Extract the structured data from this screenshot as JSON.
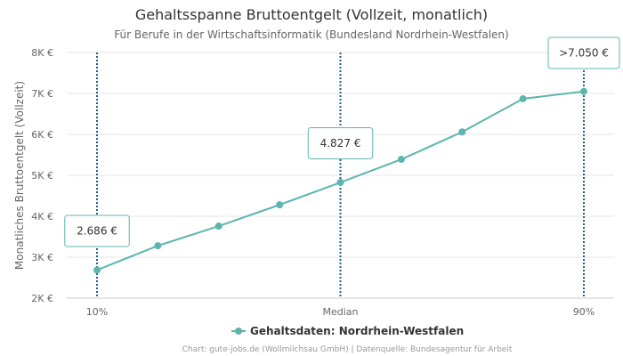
{
  "chart_data": {
    "type": "line",
    "title": "Gehaltsspanne Bruttoentgelt (Vollzeit, monatlich)",
    "subtitle": "Für Berufe in der Wirtschaftsinformatik (Bundesland Nordrhein-Westfalen)",
    "ylabel": "Monatliches Bruttoentgelt (Vollzeit)",
    "xlabel": "",
    "ylim": [
      2000,
      8000
    ],
    "y_ticks": [
      {
        "value": 2000,
        "label": "2K €"
      },
      {
        "value": 3000,
        "label": "3K €"
      },
      {
        "value": 4000,
        "label": "4K €"
      },
      {
        "value": 5000,
        "label": "5K €"
      },
      {
        "value": 6000,
        "label": "6K €"
      },
      {
        "value": 7000,
        "label": "7K €"
      },
      {
        "value": 8000,
        "label": "8K €"
      }
    ],
    "x_ticks": [
      {
        "x": 10,
        "label": "10%"
      },
      {
        "x": 50,
        "label": "Median"
      },
      {
        "x": 90,
        "label": "90%"
      }
    ],
    "grid": true,
    "series": [
      {
        "name": "Gehaltsdaten: Nordrhein-Westfalen",
        "color": "#5db5b0",
        "x": [
          10,
          20,
          30,
          40,
          50,
          60,
          70,
          80,
          90
        ],
        "values": [
          2686,
          3280,
          3760,
          4280,
          4827,
          5390,
          6060,
          6870,
          7050
        ]
      }
    ],
    "markers": [
      {
        "x": 10,
        "value": 2686,
        "label": "2.686 €"
      },
      {
        "x": 50,
        "value": 4827,
        "label": "4.827 €"
      },
      {
        "x": 90,
        "value": 7050,
        "label": ">7.050 €"
      }
    ],
    "marker_line_color": "#1f5f8b",
    "legend_position": "bottom",
    "credits": "Chart: gute-jobs.de (Wollmilchsau GmbH) | Datenquelle: Bundesagentur für Arbeit"
  }
}
